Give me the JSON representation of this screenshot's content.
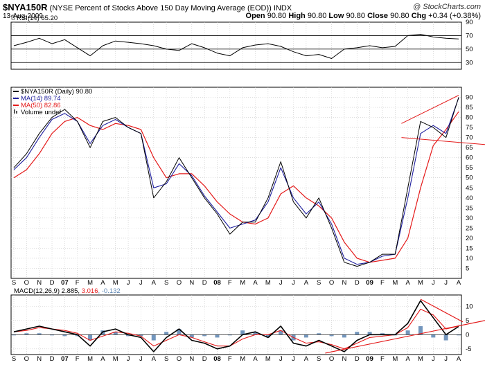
{
  "header": {
    "symbol": "$NYA150R",
    "description": "(NYSE Percent of Stocks Above 150 Day Moving Average (EOD))",
    "exchange": "INDX",
    "date": "13-Aug-2009",
    "credit": "@ StockCharts.com",
    "open_label": "Open",
    "open": "90.80",
    "high_label": "High",
    "high": "90.80",
    "low_label": "Low",
    "low": "90.80",
    "close_label": "Close",
    "close": "90.80",
    "chg_label": "Chg",
    "chg": "+0.34 (+0.38%)"
  },
  "colors": {
    "price": "#000000",
    "ma14": "#1f1f9e",
    "ma50": "#e41a1a",
    "trend": "#e41a1a",
    "grid": "#c8c8c8",
    "hist": "#5b84b1"
  },
  "chart_data": [
    {
      "type": "line",
      "panel": "rsi",
      "title": "RSI(14) 65.20",
      "ylim": [
        20,
        90
      ],
      "ticks": [
        "90",
        "70",
        "50",
        "30"
      ],
      "reference_lines": [
        70,
        50,
        30
      ],
      "x_months": [
        "S",
        "O",
        "N",
        "D",
        "07",
        "F",
        "M",
        "A",
        "M",
        "J",
        "J",
        "A",
        "S",
        "O",
        "N",
        "D",
        "08",
        "F",
        "M",
        "A",
        "M",
        "J",
        "J",
        "A",
        "S",
        "O",
        "N",
        "D",
        "09",
        "F",
        "M",
        "A",
        "M",
        "J",
        "J",
        "A"
      ],
      "series": [
        {
          "name": "RSI(14)",
          "values": [
            55,
            60,
            66,
            58,
            64,
            52,
            40,
            55,
            62,
            60,
            58,
            55,
            50,
            48,
            58,
            52,
            44,
            40,
            52,
            56,
            58,
            54,
            46,
            40,
            42,
            36,
            50,
            52,
            55,
            52,
            54,
            70,
            72,
            68,
            66,
            65
          ]
        }
      ]
    },
    {
      "type": "line",
      "panel": "price",
      "title": "$NYA150R",
      "ylim": [
        0,
        95
      ],
      "ticks": [
        "90",
        "85",
        "80",
        "75",
        "70",
        "65",
        "60",
        "55",
        "50",
        "45",
        "40",
        "35",
        "30",
        "25",
        "20",
        "15",
        "10",
        "5"
      ],
      "x_months": [
        "S",
        "O",
        "N",
        "D",
        "07",
        "F",
        "M",
        "A",
        "M",
        "J",
        "J",
        "A",
        "S",
        "O",
        "N",
        "D",
        "08",
        "F",
        "M",
        "A",
        "M",
        "J",
        "J",
        "A",
        "S",
        "O",
        "N",
        "D",
        "09",
        "F",
        "M",
        "A",
        "M",
        "J",
        "J",
        "A"
      ],
      "legend": [
        "$NYA150R (Daily) 90.80",
        "MA(14) 89.74",
        "MA(50) 82.86",
        "Volume undef"
      ],
      "series": [
        {
          "name": "$NYA150R (Daily)",
          "values": [
            55,
            62,
            72,
            80,
            84,
            78,
            65,
            78,
            80,
            75,
            72,
            40,
            48,
            60,
            50,
            40,
            32,
            22,
            28,
            28,
            40,
            58,
            38,
            30,
            40,
            25,
            8,
            6,
            8,
            12,
            12,
            45,
            78,
            75,
            70,
            90
          ]
        },
        {
          "name": "MA(14)",
          "values": [
            54,
            60,
            70,
            79,
            82,
            78,
            67,
            76,
            79,
            75,
            72,
            45,
            47,
            57,
            51,
            41,
            33,
            25,
            27,
            29,
            38,
            55,
            40,
            32,
            38,
            27,
            10,
            7,
            8,
            11,
            12,
            40,
            72,
            76,
            72,
            89.74
          ]
        },
        {
          "name": "MA(50)",
          "values": [
            50,
            54,
            62,
            72,
            78,
            80,
            76,
            74,
            77,
            76,
            74,
            60,
            50,
            52,
            52,
            46,
            38,
            32,
            28,
            27,
            30,
            42,
            46,
            40,
            36,
            30,
            18,
            10,
            8,
            9,
            10,
            20,
            45,
            66,
            74,
            82.86
          ]
        }
      ],
      "annotations": [
        "upper channel trendline",
        "lower support trendline"
      ]
    },
    {
      "type": "line",
      "panel": "macd",
      "title": "MACD(12,26,9)",
      "macd": "2.885",
      "signal": "3.016",
      "histogram": "-0.132",
      "ylim": [
        -7,
        14
      ],
      "ticks": [
        "10",
        "5",
        "0",
        "-5"
      ],
      "x_months": [
        "S",
        "O",
        "N",
        "D",
        "07",
        "F",
        "M",
        "A",
        "M",
        "J",
        "J",
        "A",
        "S",
        "O",
        "N",
        "D",
        "08",
        "F",
        "M",
        "A",
        "M",
        "J",
        "J",
        "A",
        "S",
        "O",
        "N",
        "D",
        "09",
        "F",
        "M",
        "A",
        "M",
        "J",
        "J",
        "A"
      ],
      "series": [
        {
          "name": "MACD",
          "values": [
            1,
            2,
            3,
            2,
            1,
            0,
            -4,
            1,
            2,
            0,
            -1,
            -6,
            -1,
            2,
            -2,
            -3,
            -5,
            -4,
            0,
            1,
            -1,
            3,
            -3,
            -4,
            -2,
            -4,
            -6,
            -2,
            0,
            0,
            0,
            4,
            12,
            6,
            0,
            2.885
          ]
        },
        {
          "name": "Signal",
          "values": [
            1,
            1.5,
            2.5,
            2,
            1.5,
            0.5,
            -2,
            -0.5,
            1,
            0.5,
            -0.5,
            -4,
            -2,
            0,
            -1,
            -2.5,
            -4,
            -4,
            -1.5,
            0,
            0,
            1.5,
            -1,
            -3,
            -2.5,
            -3.5,
            -5,
            -3,
            -1,
            -0.5,
            0,
            2.5,
            9,
            7,
            2,
            3.016
          ]
        },
        {
          "name": "Histogram",
          "values": [
            0,
            0.5,
            0.5,
            0,
            -0.5,
            -0.5,
            -2,
            1.5,
            1,
            -0.5,
            -0.5,
            -2,
            1,
            2,
            -1,
            -0.5,
            -1,
            0,
            1.5,
            1,
            -1,
            1.5,
            -2,
            -1,
            0.5,
            -0.5,
            -1,
            1,
            1,
            0.5,
            0,
            1.5,
            3,
            -1,
            -2,
            -0.132
          ]
        }
      ],
      "annotations": [
        "rising support trendline",
        "descending resistance trendline"
      ]
    }
  ]
}
